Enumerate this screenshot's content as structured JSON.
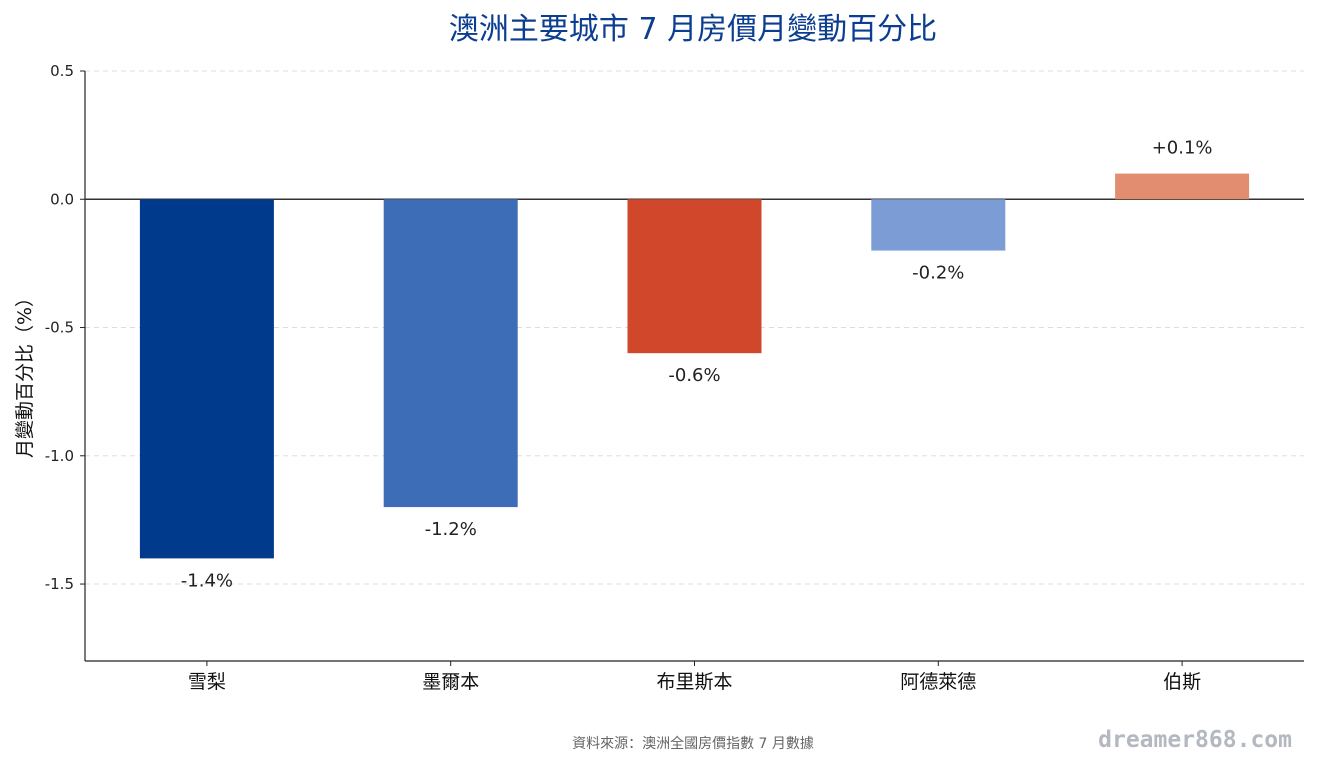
{
  "chart_data": {
    "type": "bar",
    "title": "澳洲主要城市 7 月房價月變動百分比",
    "ylabel": "月變動百分比（%）",
    "xlabel": "",
    "categories": [
      "雪梨",
      "墨爾本",
      "布里斯本",
      "阿德萊德",
      "伯斯"
    ],
    "values": [
      -1.4,
      -1.2,
      -0.6,
      -0.2,
      0.1
    ],
    "data_labels": [
      "-1.4%",
      "-1.2%",
      "-0.6%",
      "-0.2%",
      "+0.1%"
    ],
    "colors": [
      "#003a8c",
      "#3e6db7",
      "#d1472b",
      "#7b9cd4",
      "#e38d70"
    ],
    "ylim": [
      -1.8,
      0.5
    ],
    "yticks": [
      0.5,
      0.0,
      -0.5,
      -1.0,
      -1.5
    ],
    "ytick_labels": [
      "0.5",
      "0.0",
      "-0.5",
      "-1.0",
      "-1.5"
    ],
    "grid": true,
    "zero_line": true
  },
  "footer": {
    "source": "資料來源：澳洲全國房價指數 7 月數據",
    "watermark": "dreamer868.com"
  }
}
